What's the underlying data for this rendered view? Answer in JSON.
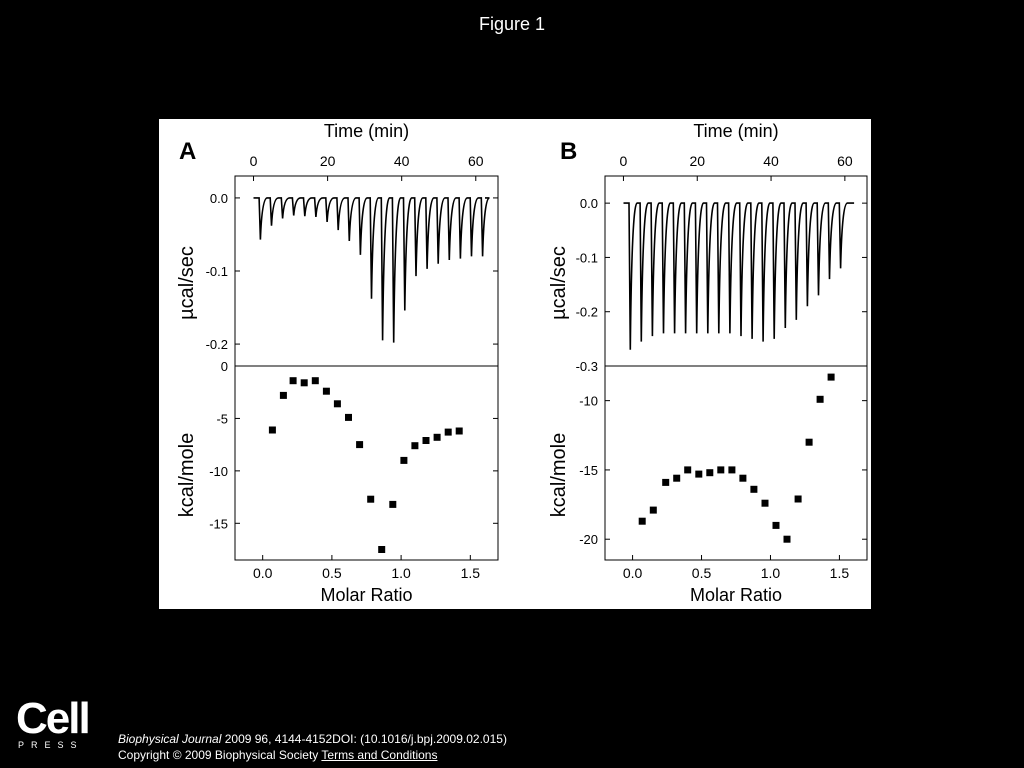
{
  "slide": {
    "title": "Figure 1"
  },
  "logo": {
    "word": "Cell",
    "sub": "PRESS"
  },
  "citation": {
    "journal": "Biophysical Journal",
    "details": " 2009 96, 4144-4152DOI: (10.1016/j.bpj.2009.02.015)",
    "copyright": "Copyright © 2009 Biophysical Society",
    "link": "Terms and Conditions"
  },
  "chart_data": [
    {
      "panel": "A",
      "type": "line",
      "title": "Time (min)",
      "xlabel": "Time (min)",
      "ylabel": "µcal/sec",
      "xlim": [
        -5,
        66
      ],
      "ylim": [
        -0.23,
        0.03
      ],
      "xticks": [
        0,
        20,
        40,
        60
      ],
      "yticks": [
        0.0,
        -0.1,
        -0.2
      ],
      "ytick_labels": [
        "0.0",
        "-0.1",
        "-0.2"
      ],
      "peaks": {
        "time": [
          1.5,
          4.5,
          7.5,
          10.5,
          13.5,
          16.5,
          19.5,
          22.5,
          25.5,
          28.5,
          31.5,
          34.5,
          37.5,
          40.5,
          43.5,
          46.5,
          49.5,
          52.5,
          55.5,
          58.5,
          61.5
        ],
        "value": [
          -0.057,
          -0.038,
          -0.028,
          -0.024,
          -0.025,
          -0.026,
          -0.033,
          -0.044,
          -0.059,
          -0.078,
          -0.138,
          -0.195,
          -0.198,
          -0.154,
          -0.107,
          -0.097,
          -0.09,
          -0.085,
          -0.083,
          -0.08,
          -0.08
        ]
      }
    },
    {
      "panel": "A",
      "type": "scatter",
      "xlabel": "Molar Ratio",
      "ylabel": "kcal/mole",
      "xlim": [
        -0.2,
        1.7
      ],
      "ylim": [
        -18.5,
        0
      ],
      "xticks": [
        0.0,
        0.5,
        1.0,
        1.5
      ],
      "xtick_labels": [
        "0.0",
        "0.5",
        "1.0",
        "1.5"
      ],
      "yticks": [
        0,
        -5,
        -10,
        -15
      ],
      "ytick_labels": [
        "0",
        "-5",
        "-10",
        "-15"
      ],
      "x": [
        0.07,
        0.15,
        0.22,
        0.3,
        0.38,
        0.46,
        0.54,
        0.62,
        0.7,
        0.78,
        0.86,
        0.94,
        1.02,
        1.1,
        1.18,
        1.26,
        1.34,
        1.42
      ],
      "y": [
        -6.1,
        -2.8,
        -1.4,
        -1.6,
        -1.4,
        -2.4,
        -3.6,
        -4.9,
        -7.5,
        -12.7,
        -17.5,
        -13.2,
        -9.0,
        -7.6,
        -7.1,
        -6.8,
        -6.3,
        -6.2
      ]
    },
    {
      "panel": "B",
      "type": "line",
      "title": "Time (min)",
      "xlabel": "Time (min)",
      "ylabel": "µcal/sec",
      "xlim": [
        -5,
        66
      ],
      "ylim": [
        -0.3,
        0.05
      ],
      "xticks": [
        0,
        20,
        40,
        60
      ],
      "yticks": [
        0.0,
        -0.1,
        -0.2,
        -0.3
      ],
      "ytick_labels": [
        "0.0",
        "-0.1",
        "-0.2",
        "-0.3"
      ],
      "peaks": {
        "time": [
          1.5,
          4.5,
          7.5,
          10.5,
          13.5,
          16.5,
          19.5,
          22.5,
          25.5,
          28.5,
          31.5,
          34.5,
          37.5,
          40.5,
          43.5,
          46.5,
          49.5,
          52.5,
          55.5,
          58.5
        ],
        "value": [
          -0.27,
          -0.255,
          -0.245,
          -0.24,
          -0.24,
          -0.24,
          -0.24,
          -0.24,
          -0.24,
          -0.24,
          -0.245,
          -0.25,
          -0.255,
          -0.25,
          -0.23,
          -0.215,
          -0.19,
          -0.17,
          -0.14,
          -0.12
        ]
      }
    },
    {
      "panel": "B",
      "type": "scatter",
      "xlabel": "Molar Ratio",
      "ylabel": "kcal/mole",
      "xlim": [
        -0.2,
        1.7
      ],
      "ylim": [
        -21.5,
        -7.5
      ],
      "xticks": [
        0.0,
        0.5,
        1.0,
        1.5
      ],
      "xtick_labels": [
        "0.0",
        "0.5",
        "1.0",
        "1.5"
      ],
      "yticks": [
        -10,
        -15,
        -20
      ],
      "ytick_labels": [
        "-10",
        "-15",
        "-20"
      ],
      "x": [
        0.07,
        0.15,
        0.24,
        0.32,
        0.4,
        0.48,
        0.56,
        0.64,
        0.72,
        0.8,
        0.88,
        0.96,
        1.04,
        1.12,
        1.2,
        1.28,
        1.36,
        1.44
      ],
      "y": [
        -18.7,
        -17.9,
        -15.9,
        -15.6,
        -15.0,
        -15.3,
        -15.2,
        -15.0,
        -15.0,
        -15.6,
        -16.4,
        -17.4,
        -19.0,
        -20.0,
        -17.1,
        -13.0,
        -9.9,
        -8.3
      ]
    }
  ]
}
